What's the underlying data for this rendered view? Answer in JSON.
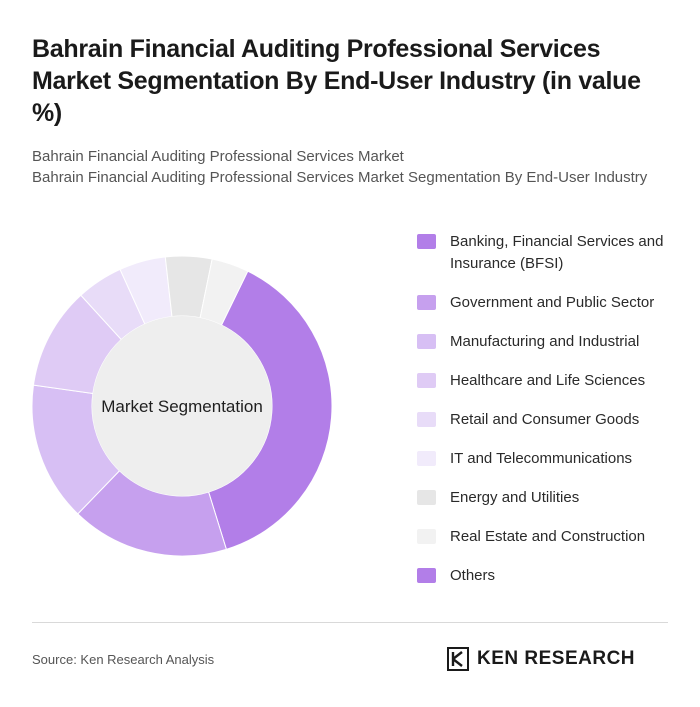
{
  "title": "Bahrain Financial Auditing Professional Services Market Segmentation By End-User Industry (in value %)",
  "subtitle_lines": [
    "Bahrain Financial Auditing Professional Services Market",
    "Bahrain Financial Auditing Professional Services Market Segmentation By End-User Industry"
  ],
  "chart_data": {
    "type": "pie",
    "center_label": "Market Segmentation",
    "categories": [
      "Banking, Financial Services and Insurance (BFSI)",
      "Government and Public Sector",
      "Manufacturing and Industrial",
      "Healthcare and Life Sciences",
      "Retail and Consumer Goods",
      "IT and Telecommunications",
      "Energy and Utilities",
      "Real Estate and Construction",
      "Others"
    ],
    "values": [
      38,
      17,
      15,
      11,
      5,
      5,
      5,
      4,
      0
    ],
    "colors": [
      "#b27ee8",
      "#c6a0ee",
      "#d7bff4",
      "#dfcbf5",
      "#e8dcf8",
      "#f1ebfb",
      "#e6e6e6",
      "#f2f2f2",
      "#b27ee8"
    ],
    "legend_position": "right"
  },
  "footer": {
    "source": "Source: Ken Research Analysis",
    "logo_text": "KEN RESEARCH",
    "logo_icon": "ken-research-k-icon"
  }
}
